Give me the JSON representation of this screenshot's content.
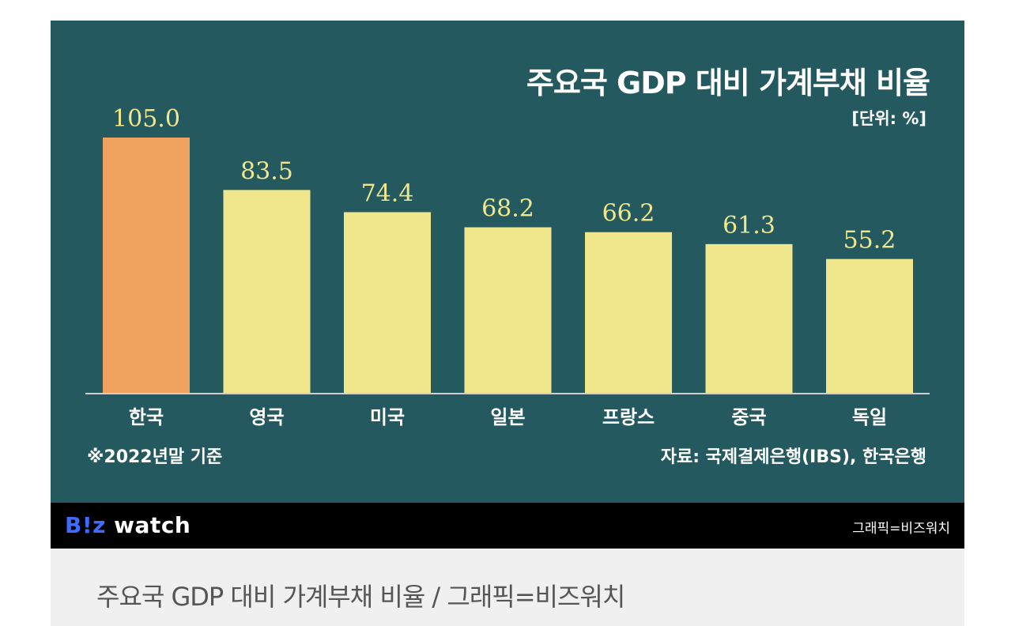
{
  "title": "주요국 GDP 대비 가계부채 비율",
  "unit": "[단위: %]",
  "note": "※2022년말 기준",
  "source": "자료: 국제결제은행(IBS), 한국은행",
  "brand": {
    "logo_b": "B!z",
    "logo_watch": " watch",
    "credit": "그래픽=비즈워치"
  },
  "caption": "주요국 GDP 대비 가계부채 비율 / 그래픽=비즈워치",
  "colors": {
    "background": "#245a5f",
    "highlight_bar": "#f0a35e",
    "bar": "#f0e68c",
    "highlight_label": "#f0e68c",
    "label": "#ffffff"
  },
  "chart_data": {
    "type": "bar",
    "title": "주요국 GDP 대비 가계부채 비율",
    "categories": [
      "한국",
      "영국",
      "미국",
      "일본",
      "프랑스",
      "중국",
      "독일"
    ],
    "values": [
      105.0,
      83.5,
      74.4,
      68.2,
      66.2,
      61.3,
      55.2
    ],
    "value_labels": [
      "105.0",
      "83.5",
      "74.4",
      "68.2",
      "66.2",
      "61.3",
      "55.2"
    ],
    "highlight_index": 0,
    "ylim": [
      0,
      105
    ],
    "grid": false,
    "legend": "none"
  }
}
